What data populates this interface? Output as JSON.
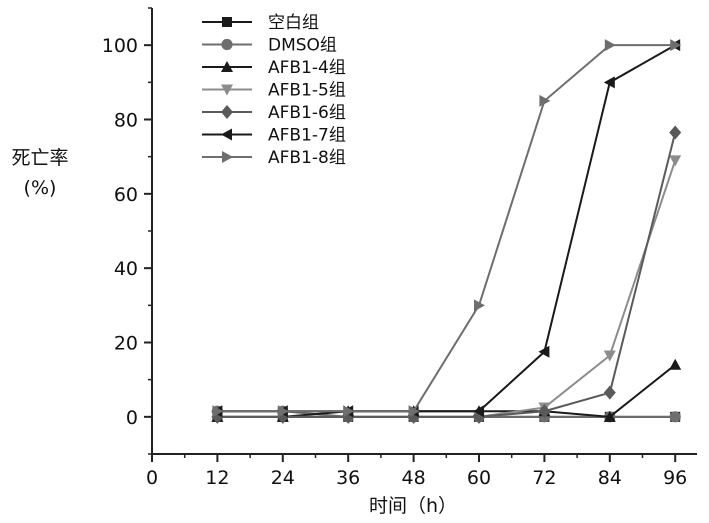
{
  "chart_data": {
    "type": "line",
    "title": "",
    "xlabel": "时间（h）",
    "ylabel_line1": "死亡率",
    "ylabel_line2": "(%)",
    "xlim": [
      0,
      100
    ],
    "ylim": [
      -10,
      110
    ],
    "x_ticks": [
      0,
      12,
      24,
      36,
      48,
      60,
      72,
      84,
      96
    ],
    "y_ticks": [
      0,
      20,
      40,
      60,
      80,
      100
    ],
    "grid": false,
    "legend_position": "top-left",
    "x": [
      12,
      24,
      36,
      48,
      60,
      72,
      84,
      96
    ],
    "series": [
      {
        "name": "空白组",
        "marker": "square",
        "color": "#1a1a1a",
        "values": [
          0,
          0,
          0,
          0,
          0,
          0,
          0,
          0
        ]
      },
      {
        "name": "DMSO组",
        "marker": "circle",
        "color": "#6e6e6e",
        "values": [
          1.5,
          1.5,
          0,
          0,
          0,
          0,
          0,
          0
        ]
      },
      {
        "name": "AFB1-4组",
        "marker": "triangle-up",
        "color": "#1a1a1a",
        "values": [
          0,
          0,
          1.5,
          1.5,
          1.5,
          1.5,
          0,
          14
        ]
      },
      {
        "name": "AFB1-5组",
        "marker": "triangle-down",
        "color": "#8c8c8c",
        "values": [
          0,
          0,
          0,
          0,
          0,
          2.5,
          16.5,
          69
        ]
      },
      {
        "name": "AFB1-6组",
        "marker": "diamond",
        "color": "#5a5a5a",
        "values": [
          0,
          0,
          0,
          0,
          0,
          1.5,
          6.5,
          76.5
        ]
      },
      {
        "name": "AFB1-7组",
        "marker": "triangle-left",
        "color": "#1a1a1a",
        "values": [
          1.5,
          1.5,
          1.5,
          1.5,
          1.5,
          17.5,
          90,
          100
        ]
      },
      {
        "name": "AFB1-8组",
        "marker": "triangle-right",
        "color": "#6e6e6e",
        "values": [
          1.5,
          1.5,
          1.5,
          1.5,
          30,
          85,
          100,
          100
        ]
      }
    ]
  }
}
